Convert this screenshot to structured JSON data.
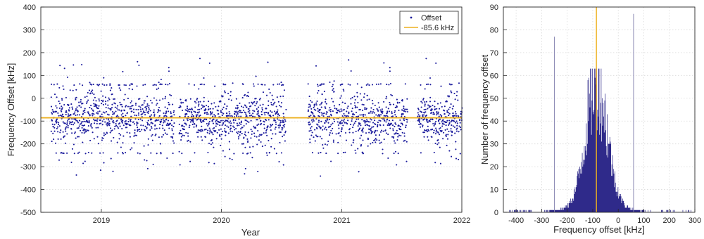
{
  "colors": {
    "points": "#1a1a9c",
    "mean_line": "#edb120",
    "bars": "#2f2a8a",
    "grid": "#d9d9d9",
    "axis": "#262626"
  },
  "chart_data": [
    {
      "type": "scatter",
      "xlabel": "Year",
      "ylabel": "Frequency Offset [kHz]",
      "xlim": [
        "2018-07-01",
        "2022-01-01"
      ],
      "ylim": [
        -500,
        400
      ],
      "yticks": [
        -500,
        -400,
        -300,
        -200,
        -100,
        0,
        100,
        200,
        300,
        400
      ],
      "xticks": [
        "2019",
        "2020",
        "2021",
        "2022"
      ],
      "grid": true,
      "legend_position": "top-right",
      "series": [
        {
          "name": "Offset",
          "style": "points",
          "description_values": "approx. 6000 daily offsets, dense around -85 kHz, range about -430 to 270 kHz",
          "observation_periods": [
            [
              "2018-08-01",
              "2019-08-10"
            ],
            [
              "2019-08-25",
              "2020-07-15"
            ],
            [
              "2020-09-20",
              "2020-12-10"
            ],
            [
              "2020-12-15",
              "2021-07-20"
            ],
            [
              "2021-08-20",
              "2022-01-01"
            ]
          ],
          "center": -85.6,
          "spread": 60,
          "min": -430,
          "max": 270
        },
        {
          "name": "-85.6 kHz",
          "style": "line",
          "y": -85.6
        }
      ]
    },
    {
      "type": "bar",
      "subtype": "histogram",
      "xlabel": "Frequency offset [kHz]",
      "ylabel": "Number of frequency offset",
      "xlim": [
        -450,
        300
      ],
      "ylim": [
        0,
        90
      ],
      "xticks": [
        -400,
        -300,
        -200,
        -100,
        0,
        100,
        200,
        300
      ],
      "yticks": [
        0,
        10,
        20,
        30,
        40,
        50,
        60,
        70,
        80,
        90
      ],
      "grid": true,
      "bin_width_khz": 2,
      "peak": {
        "x": -86,
        "y": 62
      },
      "mean_line_x": -85.6,
      "spikes": [
        {
          "x": -250,
          "y": 77
        },
        {
          "x": 60,
          "y": 87
        }
      ]
    }
  ]
}
